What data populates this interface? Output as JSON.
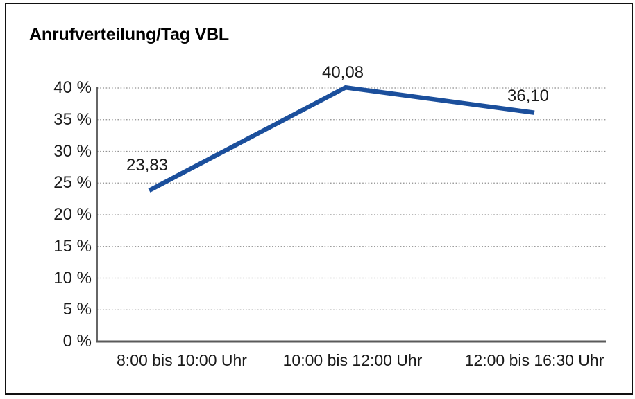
{
  "chart_data": {
    "type": "line",
    "title": "Anrufverteilung/Tag VBL",
    "categories": [
      "8:00 bis 10:00 Uhr",
      "10:00 bis 12:00 Uhr",
      "12:00 bis 16:30 Uhr"
    ],
    "series": [
      {
        "name": "Anrufverteilung/Tag VBL",
        "values": [
          23.83,
          40.08,
          36.1
        ]
      }
    ],
    "value_labels": [
      "23,83",
      "40,08",
      "36,10"
    ],
    "yticks": [
      "0 %",
      "5 %",
      "10 %",
      "15 %",
      "20 %",
      "25 %",
      "30 %",
      "35 %",
      "40 %"
    ],
    "ytick_values": [
      0,
      5,
      10,
      15,
      20,
      25,
      30,
      35,
      40
    ],
    "ylim": [
      0,
      40
    ],
    "xlabel": "",
    "ylabel": "",
    "legend": "none",
    "grid": "horizontal-dotted",
    "colors": {
      "line": "#1B4F9C",
      "grid": "#8f8f8f",
      "y_axis": "#404040",
      "x_axis": "#5a5a5a",
      "text": "#1a1a1a",
      "frame_border": "#111111",
      "background": "#ffffff"
    }
  }
}
